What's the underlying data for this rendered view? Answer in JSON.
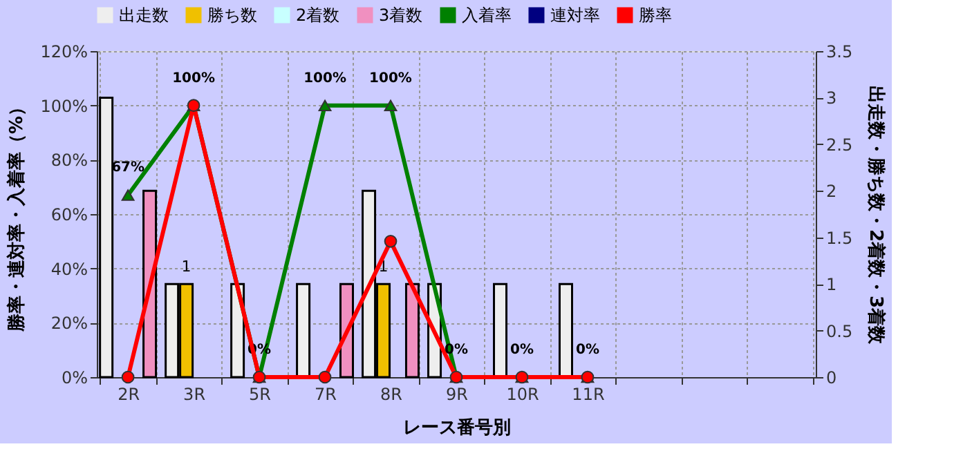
{
  "chart_data": {
    "type": "bar",
    "xlabel": "レース番号別",
    "ylabel": "勝率・連対率・入着率（%）",
    "y2label": "出走数・勝ち数・2着数・3着数",
    "categories": [
      "2R",
      "3R",
      "5R",
      "7R",
      "8R",
      "9R",
      "10R",
      "11R",
      null,
      null,
      null
    ],
    "series": [
      {
        "name": "出走数",
        "axis": "y2",
        "color": "#eeeeee",
        "values": [
          3,
          1,
          1,
          1,
          2,
          1,
          1,
          1,
          null,
          null,
          null
        ]
      },
      {
        "name": "勝ち数",
        "axis": "y2",
        "color": "#f0c000",
        "values": [
          0,
          1,
          0,
          0,
          1,
          0,
          0,
          0,
          null,
          null,
          null
        ],
        "value_labels": [
          null,
          "1",
          null,
          null,
          "1",
          null,
          null,
          null,
          null,
          null,
          null
        ]
      },
      {
        "name": "2着数",
        "axis": "y2",
        "color": "#c8ffff",
        "values": [
          0,
          0,
          0,
          0,
          0,
          0,
          0,
          0,
          null,
          null,
          null
        ]
      },
      {
        "name": "3着数",
        "axis": "y2",
        "color": "#f090c0",
        "values": [
          2,
          0,
          0,
          1,
          1,
          0,
          0,
          0,
          null,
          null,
          null
        ]
      },
      {
        "name": "入着率",
        "type": "line",
        "marker": "triangle",
        "color": "#008000",
        "values": [
          67,
          100,
          0,
          100,
          100,
          0,
          0,
          0,
          null,
          null,
          null
        ],
        "value_labels": [
          "67%",
          null,
          "0%",
          "100%",
          "100%",
          null,
          null,
          null,
          null,
          null,
          null
        ]
      },
      {
        "name": "連対率",
        "type": "line",
        "marker": "diamond",
        "color": "#000080",
        "values": [
          null,
          null,
          null,
          null,
          null,
          null,
          null,
          null,
          null,
          null,
          null
        ]
      },
      {
        "name": "勝率",
        "type": "line",
        "marker": "circle",
        "color": "#ff0000",
        "values": [
          0,
          100,
          0,
          0,
          50,
          0,
          0,
          0,
          null,
          null,
          null
        ],
        "value_labels": [
          null,
          "100%",
          null,
          null,
          null,
          "0%",
          "0%",
          "0%",
          null,
          null,
          null
        ]
      }
    ],
    "ylim": [
      0,
      120
    ],
    "yticks": [
      {
        "value": 0,
        "label": "0%"
      },
      {
        "value": 20,
        "label": "20%"
      },
      {
        "value": 40,
        "label": "40%"
      },
      {
        "value": 60,
        "label": "60%"
      },
      {
        "value": 80,
        "label": "80%"
      },
      {
        "value": 100,
        "label": "100%"
      },
      {
        "value": 120,
        "label": "120%"
      }
    ],
    "y2lim": [
      0,
      3.5
    ],
    "y2ticks": [
      0,
      0.5,
      1,
      1.5,
      2,
      2.5,
      3,
      3.5
    ],
    "grid": true,
    "legend": "top"
  }
}
